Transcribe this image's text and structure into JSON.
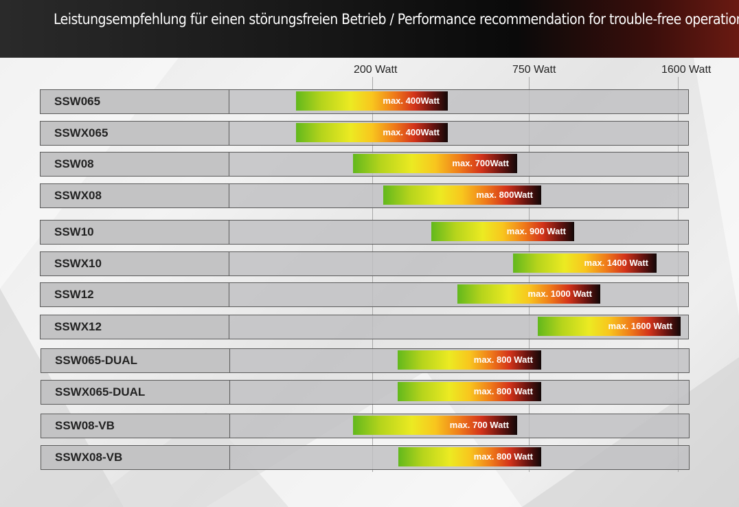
{
  "header": {
    "title": "Leistungsempfehlung für einen störungsfreien Betrieb / Performance recommendation for trouble-free operation"
  },
  "colors": {
    "header_dark": "#0a0a0a",
    "header_accent": "#6a1a12",
    "bar_start": "#62b81c",
    "bar_mid": "#ecea22",
    "bar_hot": "#d3331a",
    "bar_end": "#120808",
    "row_bg": "#c3c3c4"
  },
  "chart_data": {
    "type": "bar",
    "orientation": "horizontal",
    "axis_ticks": [
      "200 Watt",
      "750 Watt",
      "1600 Watt"
    ],
    "grid": true,
    "rows": [
      {
        "name": "SSW065",
        "label": "max. 400Watt",
        "max_watt": 400
      },
      {
        "name": "SSWX065",
        "label": "max. 400Watt",
        "max_watt": 400
      },
      {
        "name": "SSW08",
        "label": "max. 700Watt",
        "max_watt": 700
      },
      {
        "name": "SSWX08",
        "label": "max. 800Watt",
        "max_watt": 800
      },
      {
        "name": "SSW10",
        "label": "max. 900 Watt",
        "max_watt": 900
      },
      {
        "name": "SSWX10",
        "label": "max. 1400 Watt",
        "max_watt": 1400
      },
      {
        "name": "SSW12",
        "label": "max. 1000 Watt",
        "max_watt": 1000
      },
      {
        "name": "SSWX12",
        "label": "max. 1600 Watt",
        "max_watt": 1600
      },
      {
        "name": "SSW065-DUAL",
        "label": "max. 800 Watt",
        "max_watt": 800
      },
      {
        "name": "SSWX065-DUAL",
        "label": "max. 800 Watt",
        "max_watt": 800
      },
      {
        "name": "SSW08-VB",
        "label": "max. 700 Watt",
        "max_watt": 700
      },
      {
        "name": "SSWX08-VB",
        "label": "max. 800 Watt",
        "max_watt": 800
      }
    ]
  }
}
